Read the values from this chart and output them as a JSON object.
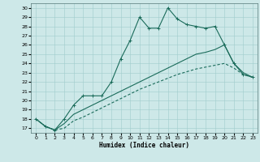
{
  "xlabel": "Humidex (Indice chaleur)",
  "bg_color": "#cde8e8",
  "grid_color": "#a0cccc",
  "line_color": "#1a6b5a",
  "xlim": [
    -0.5,
    23.5
  ],
  "ylim": [
    16.5,
    30.5
  ],
  "xticks": [
    0,
    1,
    2,
    3,
    4,
    5,
    6,
    7,
    8,
    9,
    10,
    11,
    12,
    13,
    14,
    15,
    16,
    17,
    18,
    19,
    20,
    21,
    22,
    23
  ],
  "yticks": [
    17,
    18,
    19,
    20,
    21,
    22,
    23,
    24,
    25,
    26,
    27,
    28,
    29,
    30
  ],
  "line1_x": [
    0,
    1,
    2,
    3,
    4,
    5,
    6,
    7,
    8,
    9,
    10,
    11,
    12,
    13,
    14,
    15,
    16,
    17,
    18,
    19,
    20,
    21,
    22,
    23
  ],
  "line1_y": [
    18.0,
    17.2,
    16.8,
    18.0,
    19.5,
    20.5,
    20.5,
    20.5,
    22.0,
    24.5,
    26.5,
    29.0,
    27.8,
    27.8,
    30.0,
    28.8,
    28.2,
    28.0,
    27.8,
    28.0,
    26.0,
    24.0,
    22.8,
    22.5
  ],
  "line2_x": [
    0,
    1,
    2,
    3,
    4,
    5,
    6,
    7,
    8,
    9,
    10,
    11,
    12,
    13,
    14,
    15,
    16,
    17,
    18,
    19,
    20,
    21,
    22,
    23
  ],
  "line2_y": [
    18.0,
    17.2,
    16.8,
    17.5,
    18.5,
    19.0,
    19.5,
    20.0,
    20.5,
    21.0,
    21.5,
    22.0,
    22.5,
    23.0,
    23.5,
    24.0,
    24.5,
    25.0,
    25.2,
    25.5,
    26.0,
    24.0,
    23.0,
    22.5
  ],
  "line3_x": [
    0,
    1,
    2,
    3,
    4,
    5,
    6,
    7,
    8,
    9,
    10,
    11,
    12,
    13,
    14,
    15,
    16,
    17,
    18,
    19,
    20,
    21,
    22,
    23
  ],
  "line3_y": [
    18.0,
    17.2,
    16.8,
    17.0,
    17.8,
    18.2,
    18.7,
    19.2,
    19.7,
    20.2,
    20.7,
    21.2,
    21.6,
    22.0,
    22.4,
    22.8,
    23.1,
    23.4,
    23.6,
    23.8,
    24.0,
    23.5,
    22.8,
    22.5
  ]
}
